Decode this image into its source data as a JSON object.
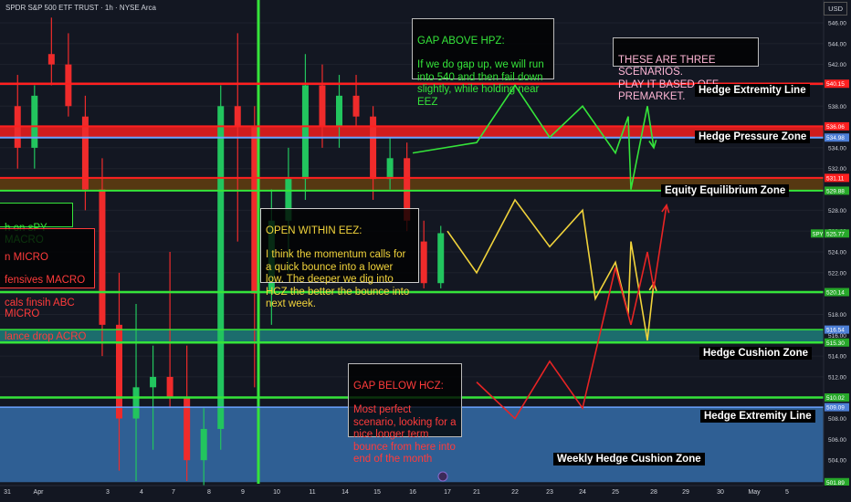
{
  "header": {
    "title": "SPDR S&P 500 ETF TRUST · 1h · NYSE Arca",
    "currency": "USD",
    "symbol": "SPY"
  },
  "colors": {
    "bg": "#131722",
    "up": "#22c55e",
    "down": "#ef2b2b",
    "green_line": "#35e43a",
    "red_line": "#ff2020",
    "blue_line": "#6aa2ff",
    "teal_zone": "#1c6d6d",
    "blue_zone": "#2f5f94",
    "yellow": "#f1d33b",
    "axis_text": "#d1d4dc"
  },
  "chart_data": {
    "type": "candlestick",
    "title": "SPDR S&P 500 ETF TRUST · 1h · NYSE Arca",
    "y_axis": {
      "ticks": [
        502,
        504,
        506,
        508,
        510,
        512,
        514,
        516,
        518,
        520,
        522,
        524,
        526,
        528,
        530,
        532,
        534,
        536,
        538,
        540,
        542,
        544,
        546
      ],
      "range": [
        501,
        547
      ]
    },
    "x_axis": {
      "labels": [
        "31",
        "Apr",
        "3",
        "4",
        "7",
        "8",
        "9",
        "10",
        "11",
        "14",
        "15",
        "16",
        "17",
        "21",
        "22",
        "23",
        "24",
        "25",
        "28",
        "29",
        "30",
        "May",
        "5"
      ]
    },
    "levels": [
      {
        "name": "Hedge Extremity Line",
        "value": 540.15,
        "price_tag": "540.15",
        "color": "red"
      },
      {
        "name": "Hedge Pressure Zone",
        "from": 534.98,
        "to": 536.06,
        "price_tags": [
          "536.06",
          "534.98"
        ],
        "color": "red"
      },
      {
        "name": "Equity Equilibrium Zone",
        "from": 529.88,
        "to": 531.11,
        "price_tags": [
          "531.11",
          "529.88"
        ],
        "color": "red/green"
      },
      {
        "name": "",
        "value": 520.14,
        "price_tag": "520.14",
        "color": "green"
      },
      {
        "name": "Hedge Cushion Zone",
        "from": 515.3,
        "to": 516.54,
        "price_tags": [
          "516.54",
          "515.30"
        ],
        "color": "teal"
      },
      {
        "name": "Hedge Extremity Line",
        "value": 510.02,
        "price_tag": "510.02",
        "color": "green"
      },
      {
        "name": "Weekly Hedge Cushion Zone",
        "from": 501.89,
        "to": 509.09,
        "price_tags": [
          "509.09",
          "501.89"
        ],
        "color": "blue"
      }
    ],
    "last_price": {
      "label": "SPY",
      "value": 525.77,
      "tag": "525.77"
    },
    "candles": [
      {
        "d": "31",
        "o": 538,
        "h": 541,
        "l": 532,
        "c": 534
      },
      {
        "d": "Apr",
        "o": 534,
        "h": 540,
        "l": 532,
        "c": 539
      },
      {
        "d": "3",
        "o": 543,
        "h": 546.5,
        "l": 540,
        "c": 542
      },
      {
        "d": "3",
        "o": 542,
        "h": 545,
        "l": 537,
        "c": 538
      },
      {
        "d": "4",
        "o": 537,
        "h": 539,
        "l": 528,
        "c": 530
      },
      {
        "d": "4",
        "o": 530,
        "h": 533,
        "l": 514,
        "c": 517
      },
      {
        "d": "7",
        "o": 517,
        "h": 522,
        "l": 503,
        "c": 508
      },
      {
        "d": "7",
        "o": 508,
        "h": 519,
        "l": 502,
        "c": 511
      },
      {
        "d": "7",
        "o": 511,
        "h": 515,
        "l": 505,
        "c": 512
      },
      {
        "d": "8",
        "o": 512,
        "h": 524,
        "l": 509,
        "c": 510
      },
      {
        "d": "8",
        "o": 510,
        "h": 515,
        "l": 502,
        "c": 504
      },
      {
        "d": "9",
        "o": 504,
        "h": 509,
        "l": 501,
        "c": 507
      },
      {
        "d": "9",
        "o": 507,
        "h": 540,
        "l": 505,
        "c": 538
      },
      {
        "d": "10",
        "o": 538,
        "h": 545,
        "l": 525,
        "c": 536
      },
      {
        "d": "10",
        "o": 536,
        "h": 538,
        "l": 511,
        "c": 520
      },
      {
        "d": "11",
        "o": 520,
        "h": 530,
        "l": 517,
        "c": 527
      },
      {
        "d": "11",
        "o": 527,
        "h": 534,
        "l": 522,
        "c": 531
      },
      {
        "d": "14",
        "o": 531,
        "h": 543,
        "l": 529,
        "c": 540
      },
      {
        "d": "14",
        "o": 540,
        "h": 542,
        "l": 534,
        "c": 536
      },
      {
        "d": "15",
        "o": 536,
        "h": 541,
        "l": 534,
        "c": 539
      },
      {
        "d": "15",
        "o": 539,
        "h": 541,
        "l": 536,
        "c": 537
      },
      {
        "d": "16",
        "o": 537,
        "h": 538,
        "l": 529,
        "c": 531
      },
      {
        "d": "16",
        "o": 531,
        "h": 535,
        "l": 530,
        "c": 533
      },
      {
        "d": "16",
        "o": 533,
        "h": 534.5,
        "l": 526,
        "c": 527
      },
      {
        "d": "17",
        "o": 525,
        "h": 527,
        "l": 520.5,
        "c": 521
      },
      {
        "d": "17",
        "o": 521,
        "h": 526.5,
        "l": 520.5,
        "c": 525.8
      }
    ],
    "projections": [
      {
        "name": "",
        "color": "green",
        "points": [
          [
            "16",
            533.5
          ],
          [
            "21",
            534.5
          ],
          [
            "22",
            540
          ],
          [
            "23",
            535
          ],
          [
            "24",
            538
          ],
          [
            "25",
            533.5
          ],
          [
            "25",
            537
          ],
          [
            "26",
            530
          ],
          [
            "27",
            538
          ],
          [
            "28",
            534
          ]
        ]
      },
      {
        "name": "",
        "color": "yellow",
        "points": [
          [
            "17",
            526
          ],
          [
            "21",
            522
          ],
          [
            "22",
            529
          ],
          [
            "23",
            524.5
          ],
          [
            "24",
            528
          ],
          [
            "24",
            519.5
          ],
          [
            "25",
            523
          ],
          [
            "25",
            518
          ],
          [
            "26",
            525
          ],
          [
            "27",
            515.5
          ],
          [
            "28",
            521
          ]
        ]
      },
      {
        "name": "",
        "color": "red",
        "points": [
          [
            "21",
            511.5
          ],
          [
            "22",
            508
          ],
          [
            "23",
            513.5
          ],
          [
            "24",
            509
          ],
          [
            "25",
            522.5
          ],
          [
            "26",
            517
          ],
          [
            "27",
            524
          ],
          [
            "28",
            520.5
          ],
          [
            "28",
            528.5
          ]
        ]
      }
    ]
  },
  "annotations": {
    "gap_above": {
      "title": "GAP ABOVE HPZ:",
      "body": "If we do gap up, we will run into 540 and then fail down slightly, while holding near EEZ"
    },
    "three_scenarios": {
      "body": "THESE ARE THREE SCENARIOS.\nPLAY IT BASED OFF PREMARKET."
    },
    "open_within": {
      "title": "OPEN WITHIN EEZ:",
      "body": "I think the momentum calls for a quick bounce into a lower low. The deeper we dig into HCZ the better the bounce into next week."
    },
    "gap_below": {
      "title": "GAP BELOW HCZ:",
      "body": "Most perfect scenario, looking for a nice longer term bounce from here into end of the month"
    },
    "left_partial": {
      "title": "h on sPY MACRO",
      "lines": [
        "n MICRO",
        "fensives MACRO",
        "cals finsih ABC MICRO",
        "lance drop ACRO"
      ]
    }
  }
}
